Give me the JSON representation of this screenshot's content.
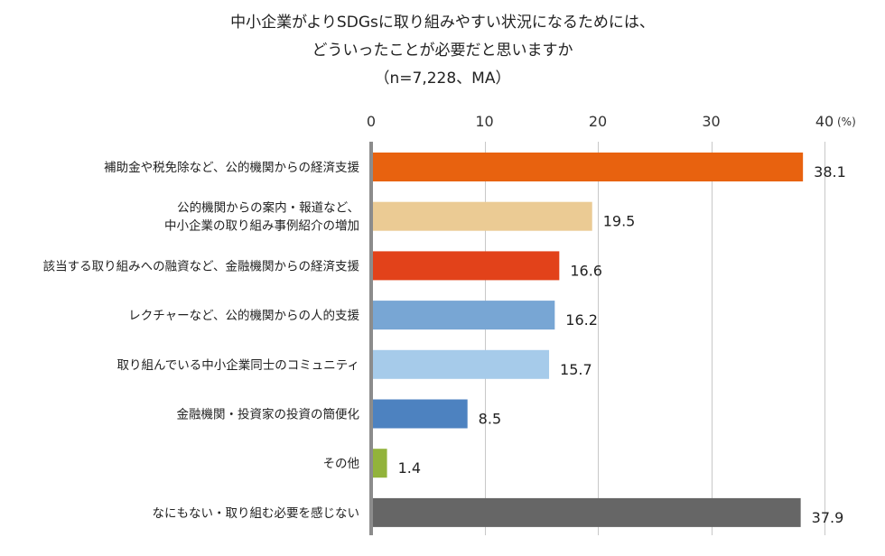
{
  "title_lines": [
    "中小企業がよりSDGsに取り組みやすい状況になるためには、",
    "どういったことが必要だと思いますか",
    "（n=7,228、MA）"
  ],
  "chart_data": {
    "type": "bar",
    "orientation": "horizontal",
    "title": "中小企業がよりSDGsに取り組みやすい状況になるためには、どういったことが必要だと思いますか",
    "subtitle": "（n=7,228、MA）",
    "unit": "(%)",
    "xlim": [
      0,
      40
    ],
    "xticks": [
      0,
      10,
      20,
      30,
      40
    ],
    "grid": true,
    "categories": [
      [
        "補助金や税免除など、公的機関からの経済支援"
      ],
      [
        "公的機関からの案内・報道など、",
        "中小企業の取り組み事例紹介の増加"
      ],
      [
        "該当する取り組みへの融資など、金融機関からの経済支援"
      ],
      [
        "レクチャーなど、公的機関からの人的支援"
      ],
      [
        "取り組んでいる中小企業同士のコミュニティ"
      ],
      [
        "金融機関・投資家の投資の簡便化"
      ],
      [
        "その他"
      ],
      [
        "なにもない・取り組む必要を感じない"
      ]
    ],
    "values": [
      38.1,
      19.5,
      16.6,
      16.2,
      15.7,
      8.5,
      1.4,
      37.9
    ],
    "value_labels": [
      "38.1",
      "19.5",
      "16.6",
      "16.2",
      "15.7",
      "8.5",
      "1.4",
      "37.9"
    ],
    "colors": [
      "#E8620F",
      "#EBCB94",
      "#E2421A",
      "#78A6D4",
      "#A6CBEA",
      "#4D82C0",
      "#92B33B",
      "#666666"
    ]
  }
}
